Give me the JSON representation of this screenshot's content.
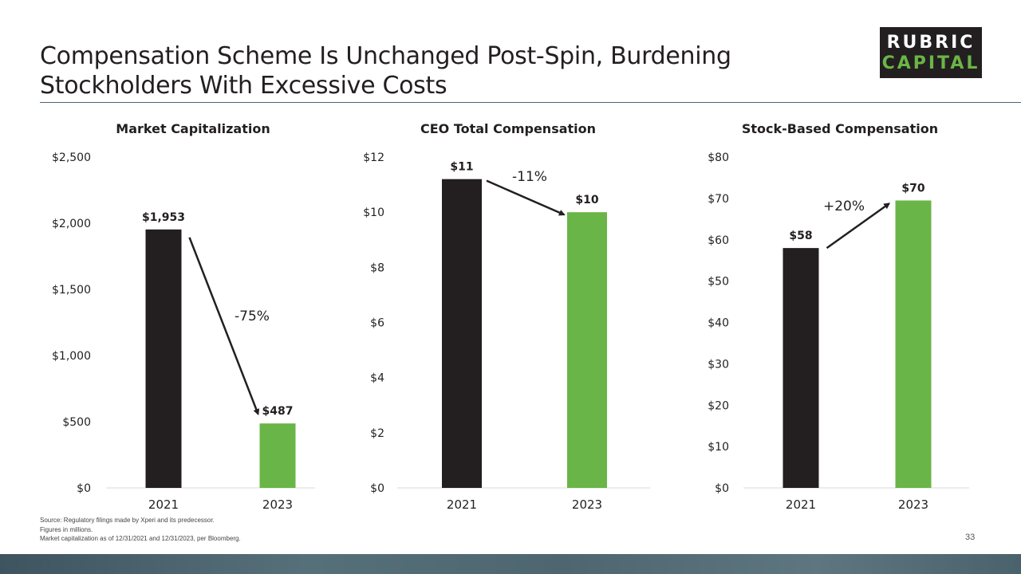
{
  "title": "Compensation Scheme Is Unchanged Post-Spin, Burdening Stockholders With Excessive Costs",
  "logo": {
    "line1": "RUBRIC",
    "line2": "CAPITAL"
  },
  "colors": {
    "dark_bar": "#231f20",
    "green_bar": "#6ab547",
    "rule": "#4a6272"
  },
  "chart_data": [
    {
      "type": "bar",
      "title": "Market Capitalization",
      "categories": [
        "2021",
        "2023"
      ],
      "values": [
        1953,
        487
      ],
      "data_labels": [
        "$1,953",
        "$487"
      ],
      "ylim": [
        0,
        2500
      ],
      "yticks": [
        0,
        500,
        1000,
        1500,
        2000,
        2500
      ],
      "ytick_labels": [
        "$0",
        "$500",
        "$1,000",
        "$1,500",
        "$2,000",
        "$2,500"
      ],
      "change_label": "-75%",
      "grid": false
    },
    {
      "type": "bar",
      "title": "CEO Total Compensation",
      "categories": [
        "2021",
        "2023"
      ],
      "values": [
        11.2,
        10.0
      ],
      "data_labels": [
        "$11",
        "$10"
      ],
      "ylim": [
        0,
        12
      ],
      "yticks": [
        0,
        2,
        4,
        6,
        8,
        10,
        12
      ],
      "ytick_labels": [
        "$0",
        "$2",
        "$4",
        "$6",
        "$8",
        "$10",
        "$12"
      ],
      "change_label": "-11%",
      "grid": false
    },
    {
      "type": "bar",
      "title": "Stock-Based Compensation",
      "categories": [
        "2021",
        "2023"
      ],
      "values": [
        58,
        69.5
      ],
      "data_labels": [
        "$58",
        "$70"
      ],
      "ylim": [
        0,
        80
      ],
      "yticks": [
        0,
        10,
        20,
        30,
        40,
        50,
        60,
        70,
        80
      ],
      "ytick_labels": [
        "$0",
        "$10",
        "$20",
        "$30",
        "$40",
        "$50",
        "$60",
        "$70",
        "$80"
      ],
      "change_label": "+20%",
      "grid": false
    }
  ],
  "footnotes": [
    "Source: Regulatory filings made by Xperi and its predecessor.",
    "Figures in millions.",
    "Market capitalization as of 12/31/2021 and 12/31/2023, per Bloomberg."
  ],
  "page_number": "33"
}
